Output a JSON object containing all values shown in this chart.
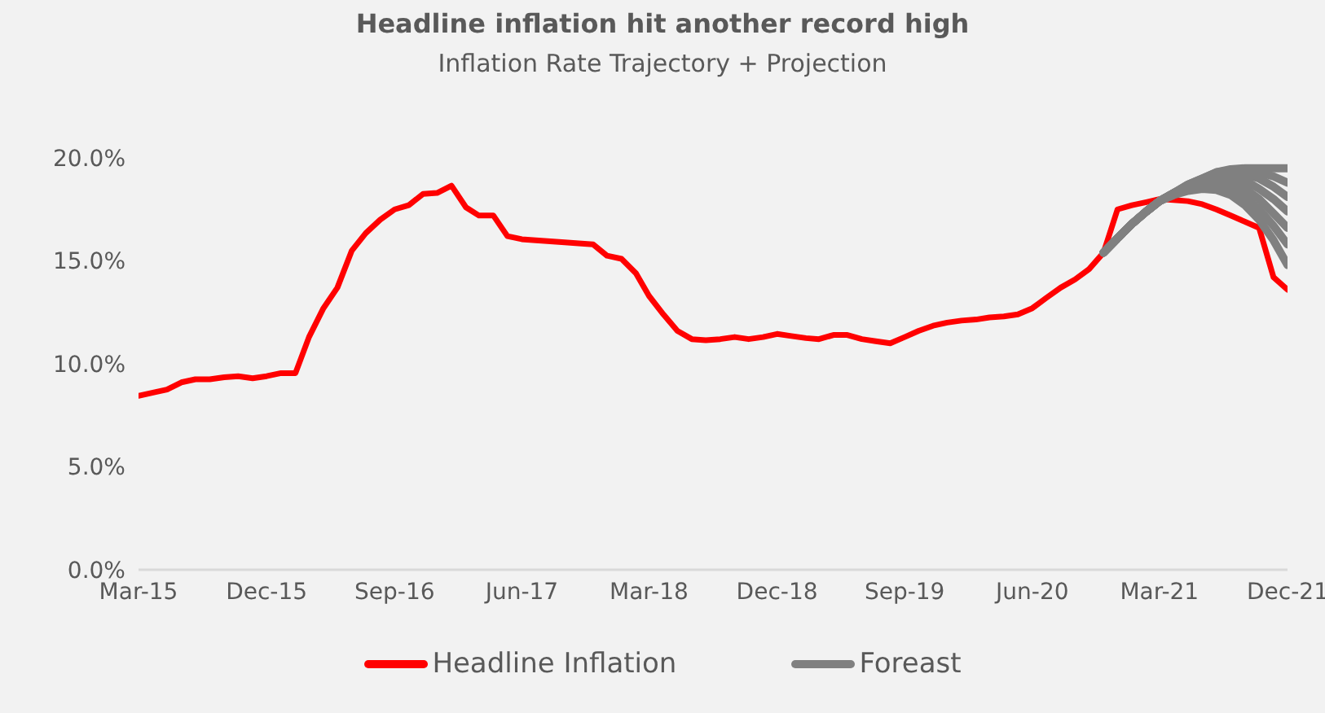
{
  "chart_data": {
    "type": "line",
    "title": "Headline inflation hit another record high",
    "subtitle": "Inflation Rate Trajectory + Projection",
    "x": [
      "2015-03",
      "2015-04",
      "2015-05",
      "2015-06",
      "2015-07",
      "2015-08",
      "2015-09",
      "2015-10",
      "2015-11",
      "2015-12",
      "2016-01",
      "2016-02",
      "2016-03",
      "2016-04",
      "2016-05",
      "2016-06",
      "2016-07",
      "2016-08",
      "2016-09",
      "2016-10",
      "2016-11",
      "2016-12",
      "2017-01",
      "2017-02",
      "2017-03",
      "2017-04",
      "2017-05",
      "2017-06",
      "2017-07",
      "2017-08",
      "2017-09",
      "2017-10",
      "2017-11",
      "2017-12",
      "2018-01",
      "2018-02",
      "2018-03",
      "2018-04",
      "2018-05",
      "2018-06",
      "2018-07",
      "2018-08",
      "2018-09",
      "2018-10",
      "2018-11",
      "2018-12",
      "2019-01",
      "2019-02",
      "2019-03",
      "2019-04",
      "2019-05",
      "2019-06",
      "2019-07",
      "2019-08",
      "2019-09",
      "2019-10",
      "2019-11",
      "2019-12",
      "2020-01",
      "2020-02",
      "2020-03",
      "2020-04",
      "2020-05",
      "2020-06",
      "2020-07",
      "2020-08",
      "2020-09",
      "2020-10",
      "2020-11",
      "2020-12",
      "2021-01",
      "2021-02",
      "2021-03",
      "2021-04",
      "2021-05",
      "2021-06",
      "2021-07",
      "2021-08",
      "2021-09",
      "2021-10",
      "2021-11",
      "2021-12"
    ],
    "series": [
      {
        "name": "Headline Inflation",
        "color": "#ff0000",
        "values": [
          8.45,
          8.6,
          8.75,
          9.1,
          9.25,
          9.25,
          9.35,
          9.4,
          9.3,
          9.4,
          9.55,
          9.55,
          11.3,
          12.7,
          13.7,
          15.5,
          16.35,
          17.0,
          17.5,
          17.7,
          18.25,
          18.3,
          18.65,
          17.6,
          17.2,
          17.2,
          16.2,
          16.05,
          16.0,
          15.95,
          15.9,
          15.85,
          15.8,
          15.25,
          15.1,
          14.4,
          13.3,
          12.4,
          11.6,
          11.2,
          11.15,
          11.2,
          11.3,
          11.2,
          11.3,
          11.45,
          11.35,
          11.25,
          11.2,
          11.4,
          11.4,
          11.2,
          11.1,
          11.0,
          11.3,
          11.6,
          11.85,
          12.0,
          12.1,
          12.15,
          12.25,
          12.3,
          12.4,
          12.7,
          13.2,
          13.7,
          14.1,
          14.6,
          15.4,
          17.5,
          17.7,
          17.85,
          18.0,
          17.95,
          17.9,
          17.75,
          17.5,
          17.2,
          16.9,
          16.6,
          14.2,
          13.6
        ]
      },
      {
        "name": "Foreast",
        "color": "#808080",
        "x": [
          "2020-11",
          "2020-12",
          "2021-01",
          "2021-02",
          "2021-03",
          "2021-04",
          "2021-05",
          "2021-06",
          "2021-07",
          "2021-08",
          "2021-09",
          "2021-10",
          "2021-11",
          "2021-12"
        ],
        "values": [
          15.4,
          16.1,
          16.8,
          17.4,
          17.9,
          18.3,
          18.7,
          19.0,
          19.3,
          19.45,
          19.5,
          19.5,
          19.5,
          19.5
        ]
      },
      {
        "color": "#808080",
        "x": [
          "2020-11",
          "2020-12",
          "2021-01",
          "2021-02",
          "2021-03",
          "2021-04",
          "2021-05",
          "2021-06",
          "2021-07",
          "2021-08",
          "2021-09",
          "2021-10",
          "2021-11",
          "2021-12"
        ],
        "values": [
          15.4,
          16.1,
          16.8,
          17.4,
          17.9,
          18.3,
          18.7,
          19.0,
          19.3,
          19.4,
          19.4,
          19.3,
          19.1,
          18.8
        ]
      },
      {
        "color": "#808080",
        "x": [
          "2020-11",
          "2020-12",
          "2021-01",
          "2021-02",
          "2021-03",
          "2021-04",
          "2021-05",
          "2021-06",
          "2021-07",
          "2021-08",
          "2021-09",
          "2021-10",
          "2021-11",
          "2021-12"
        ],
        "values": [
          15.4,
          16.1,
          16.8,
          17.4,
          17.9,
          18.3,
          18.65,
          18.95,
          19.2,
          19.3,
          19.2,
          19.0,
          18.6,
          18.1
        ]
      },
      {
        "color": "#808080",
        "x": [
          "2020-11",
          "2020-12",
          "2021-01",
          "2021-02",
          "2021-03",
          "2021-04",
          "2021-05",
          "2021-06",
          "2021-07",
          "2021-08",
          "2021-09",
          "2021-10",
          "2021-11",
          "2021-12"
        ],
        "values": [
          15.4,
          16.1,
          16.8,
          17.4,
          17.9,
          18.3,
          18.6,
          18.9,
          19.05,
          19.1,
          18.9,
          18.5,
          18.0,
          17.4
        ]
      },
      {
        "color": "#808080",
        "x": [
          "2020-11",
          "2020-12",
          "2021-01",
          "2021-02",
          "2021-03",
          "2021-04",
          "2021-05",
          "2021-06",
          "2021-07",
          "2021-08",
          "2021-09",
          "2021-10",
          "2021-11",
          "2021-12"
        ],
        "values": [
          15.4,
          16.1,
          16.8,
          17.4,
          17.9,
          18.3,
          18.55,
          18.8,
          18.9,
          18.85,
          18.5,
          18.0,
          17.3,
          16.6
        ]
      },
      {
        "color": "#808080",
        "x": [
          "2020-11",
          "2020-12",
          "2021-01",
          "2021-02",
          "2021-03",
          "2021-04",
          "2021-05",
          "2021-06",
          "2021-07",
          "2021-08",
          "2021-09",
          "2021-10",
          "2021-11",
          "2021-12"
        ],
        "values": [
          15.4,
          16.1,
          16.8,
          17.4,
          17.9,
          18.3,
          18.5,
          18.65,
          18.7,
          18.5,
          18.1,
          17.5,
          16.7,
          15.8
        ]
      },
      {
        "color": "#808080",
        "x": [
          "2020-11",
          "2020-12",
          "2021-01",
          "2021-02",
          "2021-03",
          "2021-04",
          "2021-05",
          "2021-06",
          "2021-07",
          "2021-08",
          "2021-09",
          "2021-10",
          "2021-11",
          "2021-12"
        ],
        "values": [
          15.4,
          16.1,
          16.8,
          17.4,
          17.9,
          18.2,
          18.4,
          18.5,
          18.45,
          18.2,
          17.7,
          17.0,
          16.0,
          14.8
        ]
      }
    ],
    "xlim": [
      "2015-03",
      "2021-12"
    ],
    "xticks": [
      {
        "value": "2015-03",
        "label": "Mar-15"
      },
      {
        "value": "2015-12",
        "label": "Dec-15"
      },
      {
        "value": "2016-09",
        "label": "Sep-16"
      },
      {
        "value": "2017-06",
        "label": "Jun-17"
      },
      {
        "value": "2018-03",
        "label": "Mar-18"
      },
      {
        "value": "2018-12",
        "label": "Dec-18"
      },
      {
        "value": "2019-09",
        "label": "Sep-19"
      },
      {
        "value": "2020-06",
        "label": "Jun-20"
      },
      {
        "value": "2021-03",
        "label": "Mar-21"
      },
      {
        "value": "2021-12",
        "label": "Dec-21"
      }
    ],
    "ylim": [
      0,
      20
    ],
    "yticks": [
      {
        "value": 0,
        "label": "0.0%"
      },
      {
        "value": 5,
        "label": "5.0%"
      },
      {
        "value": 10,
        "label": "10.0%"
      },
      {
        "value": 15,
        "label": "15.0%"
      },
      {
        "value": 20,
        "label": "20.0%"
      }
    ],
    "grid": false,
    "legend": "bottom",
    "marker": "none",
    "line_style": "solid"
  }
}
